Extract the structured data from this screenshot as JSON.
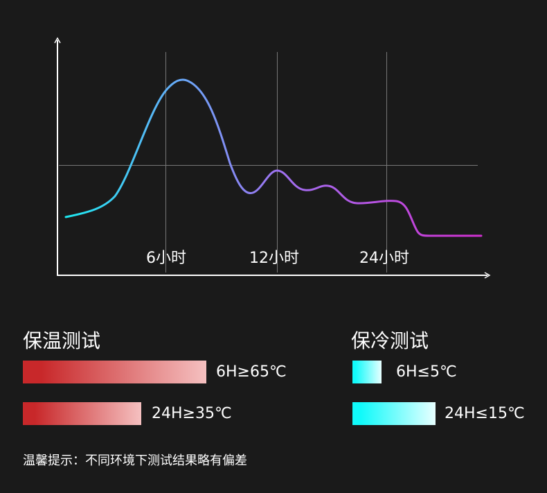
{
  "chart_data": {
    "type": "line",
    "title": "",
    "xlabel": "",
    "ylabel": "",
    "x_tick_labels": [
      "6小时",
      "12小时",
      "24小时"
    ],
    "grid": true,
    "series": [
      {
        "colors": [
          "#1de8f0",
          "#6aa8f8",
          "#a070f0",
          "#d030d0"
        ]
      }
    ]
  },
  "legend": {
    "warm": {
      "title": "保温测试",
      "gradient": [
        "#c8282a",
        "#f5c0c0"
      ],
      "items": [
        {
          "label": "6H≥65℃",
          "hours": 6,
          "temperature": 65
        },
        {
          "label": "24H≥35℃",
          "hours": 24,
          "temperature": 35
        }
      ]
    },
    "cold": {
      "title": "保冷测试",
      "gradient": [
        "#10fafa",
        "#e8ffff"
      ],
      "items": [
        {
          "label": "6H≤5℃",
          "hours": 6,
          "temperature": 5
        },
        {
          "label": "24H≤15℃",
          "hours": 24,
          "temperature": 15
        }
      ]
    }
  },
  "note": "温馨提示：不同环境下测试结果略有偏差"
}
